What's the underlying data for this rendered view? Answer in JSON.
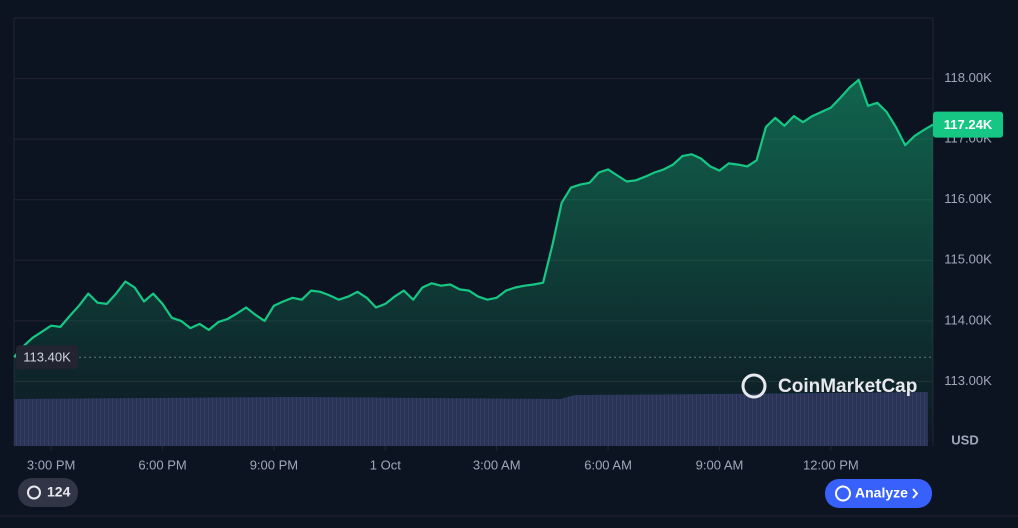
{
  "chart_data": {
    "type": "line",
    "color": "#16c784",
    "x": [
      14,
      14.25,
      14.5,
      14.75,
      15,
      15.25,
      15.5,
      15.75,
      16,
      16.25,
      16.5,
      16.75,
      17,
      17.25,
      17.5,
      17.75,
      18,
      18.25,
      18.5,
      18.75,
      19,
      19.25,
      19.5,
      19.75,
      20,
      20.25,
      20.5,
      20.75,
      21,
      21.25,
      21.5,
      21.75,
      22,
      22.25,
      22.5,
      22.75,
      23,
      23.25,
      23.5,
      23.75,
      24,
      24.25,
      24.5,
      24.75,
      25,
      25.25,
      25.5,
      25.75,
      26,
      26.25,
      26.5,
      26.75,
      27,
      27.25,
      27.5,
      27.75,
      28,
      28.25,
      28.5,
      28.75,
      29,
      29.25,
      29.5,
      29.75,
      30,
      30.25,
      30.5,
      30.75,
      31,
      31.25,
      31.5,
      31.75,
      32,
      32.25,
      32.5,
      32.75,
      33,
      33.25,
      33.5,
      33.75,
      34,
      34.25,
      34.5,
      34.75,
      35,
      35.25,
      35.5,
      35.75,
      36,
      36.25,
      36.5,
      36.75,
      37,
      37.25,
      37.5,
      37.75,
      38,
      38.25,
      38.5,
      38.75
    ],
    "values": [
      113.4,
      113.58,
      113.72,
      113.82,
      113.92,
      113.9,
      114.08,
      114.25,
      114.45,
      114.3,
      114.28,
      114.45,
      114.65,
      114.55,
      114.32,
      114.45,
      114.28,
      114.05,
      114.0,
      113.88,
      113.95,
      113.85,
      113.98,
      114.03,
      114.12,
      114.22,
      114.1,
      114.0,
      114.25,
      114.32,
      114.38,
      114.35,
      114.5,
      114.48,
      114.42,
      114.35,
      114.4,
      114.48,
      114.38,
      114.22,
      114.28,
      114.4,
      114.5,
      114.35,
      114.55,
      114.62,
      114.58,
      114.6,
      114.52,
      114.5,
      114.4,
      114.35,
      114.38,
      114.5,
      114.55,
      114.58,
      114.6,
      114.63,
      115.25,
      115.95,
      116.2,
      116.25,
      116.28,
      116.45,
      116.5,
      116.4,
      116.3,
      116.32,
      116.38,
      116.45,
      116.5,
      116.58,
      116.72,
      116.75,
      116.68,
      116.55,
      116.48,
      116.6,
      116.58,
      116.55,
      116.65,
      117.2,
      117.35,
      117.22,
      117.38,
      117.28,
      117.38,
      117.45,
      117.52,
      117.68,
      117.85,
      117.98,
      117.55,
      117.6,
      117.45,
      117.2,
      116.9,
      117.05,
      117.15,
      117.24
    ],
    "xlim": [
      14,
      38.75
    ],
    "xticks": [
      {
        "value": 15,
        "label": "3:00 PM"
      },
      {
        "value": 18,
        "label": "6:00 PM"
      },
      {
        "value": 21,
        "label": "9:00 PM"
      },
      {
        "value": 24,
        "label": "1 Oct"
      },
      {
        "value": 27,
        "label": "3:00 AM"
      },
      {
        "value": 30,
        "label": "6:00 AM"
      },
      {
        "value": 33,
        "label": "9:00 AM"
      },
      {
        "value": 36,
        "label": "12:00 PM"
      }
    ],
    "ylim": [
      112,
      119
    ],
    "yticks": [
      {
        "value": 113,
        "label": "113.00K"
      },
      {
        "value": 114,
        "label": "114.00K"
      },
      {
        "value": 115,
        "label": "115.00K"
      },
      {
        "value": 116,
        "label": "116.00K"
      },
      {
        "value": 117,
        "label": "117.00K"
      },
      {
        "value": 118,
        "label": "118.00K"
      }
    ],
    "grid": true,
    "reference": {
      "value": 113.4,
      "label": "113.40K"
    },
    "last_price": {
      "value": 117.24,
      "label": "117.24K"
    },
    "unit": "USD",
    "watermark": "CoinMarketCap"
  },
  "controls": {
    "history_count": 124,
    "analyze": "Analyze"
  }
}
